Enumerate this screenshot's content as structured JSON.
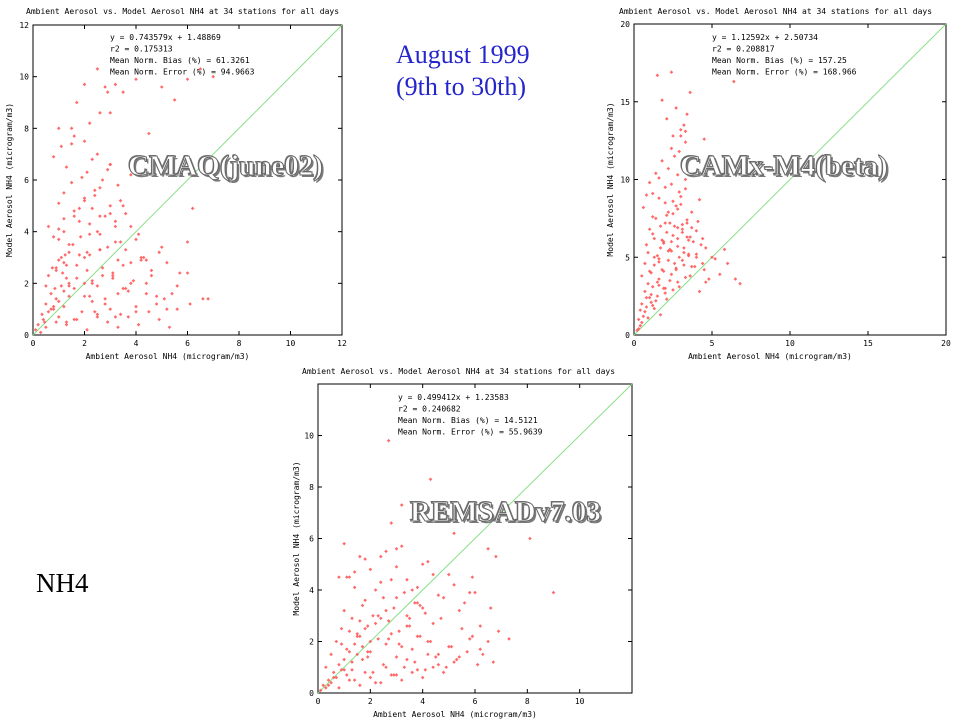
{
  "page": {
    "date_line1": "August 1999",
    "date_line2": "(9th to 30th)",
    "species_label": "NH4"
  },
  "chart_data": [
    {
      "id": "cmaq",
      "type": "scatter",
      "title": "Ambient Aerosol vs. Model Aerosol  NH4 at 34 stations for all days",
      "overlay_label": "CMAQ(june02)",
      "xlabel": "Ambient Aerosol  NH4 (microgram/m3)",
      "ylabel": "Model Aerosol  NH4 (microgram/m3)",
      "xlim": [
        0,
        12
      ],
      "ylim": [
        0,
        12
      ],
      "xticks": [
        0,
        2,
        4,
        6,
        8,
        10,
        12
      ],
      "yticks": [
        0,
        2,
        4,
        6,
        8,
        10,
        12
      ],
      "stats": [
        "y = 0.743579x + 1.48869",
        "r2 = 0.175313",
        "Mean Norm. Bias (%) = 61.3261",
        "Mean Norm. Error (%) = 94.9663"
      ],
      "marker_color": "#ff5a5a",
      "line_color": "#88e088",
      "x": [
        0.1,
        0.2,
        0.3,
        0.35,
        0.45,
        0.5,
        0.6,
        0.7,
        0.8,
        0.9,
        1.0,
        1.1,
        1.2,
        1.3,
        1.4,
        0.5,
        0.6,
        0.75,
        0.85,
        1.0,
        1.15,
        1.25,
        1.4,
        1.55,
        1.7,
        1.85,
        2.0,
        2.1,
        2.3,
        2.5,
        2.7,
        2.9,
        3.1,
        3.3,
        3.5,
        0.8,
        1.0,
        1.2,
        1.4,
        1.6,
        1.8,
        2.0,
        2.2,
        2.4,
        2.6,
        2.8,
        3.0,
        3.2,
        3.4,
        3.6,
        3.8,
        4.0,
        4.3,
        4.6,
        5.0,
        1.0,
        1.2,
        1.5,
        1.8,
        2.1,
        2.4,
        2.7,
        3.0,
        3.3,
        3.6,
        0.8,
        1.1,
        1.3,
        1.6,
        1.9,
        2.2,
        2.5,
        2.8,
        1.5,
        1.7,
        2.0,
        2.3,
        2.6,
        2.9,
        3.2,
        0.9,
        1.2,
        1.4,
        1.7,
        2.0,
        2.3,
        2.6,
        3.1,
        3.5,
        3.9,
        4.4,
        4.9,
        5.4,
        6.0,
        6.6,
        0.4,
        0.7,
        1.0,
        1.3,
        1.6,
        1.9,
        2.2,
        2.5,
        2.8,
        3.1,
        3.4,
        3.7,
        4.0,
        4.4,
        4.8,
        5.2,
        2.0,
        2.3,
        2.6,
        2.9,
        3.2,
        3.5,
        3.8,
        4.1,
        0.6,
        1.0,
        1.4,
        1.8,
        2.2,
        2.6,
        3.0,
        0.9,
        1.1,
        1.3,
        2.1,
        2.3,
        2.5,
        2.7,
        3.0,
        3.3,
        0.8,
        1.2,
        1.6,
        2.0,
        2.4,
        2.8,
        3.2,
        3.6,
        4.0,
        4.4,
        4.8,
        5.2,
        5.6,
        6.0,
        1.0,
        1.5,
        2.0,
        2.5,
        3.0,
        3.5,
        4.0,
        4.5,
        5.0,
        5.5,
        6.0,
        6.5,
        7.0,
        1.2,
        1.6,
        2.2,
        2.6,
        3.2,
        3.8,
        4.2,
        4.6,
        5.1,
        5.6,
        6.1,
        6.8,
        3.0,
        3.4,
        3.8,
        4.2,
        0.5,
        0.9,
        1.3,
        1.7,
        2.1,
        2.5,
        2.9,
        3.3,
        3.7,
        4.1,
        4.5,
        4.9,
        5.3,
        5.7,
        6.2
      ],
      "y": [
        0.2,
        0.4,
        0.1,
        0.8,
        0.5,
        1.2,
        0.9,
        1.6,
        1.0,
        1.4,
        0.7,
        1.9,
        1.1,
        2.2,
        1.5,
        1.9,
        2.3,
        2.6,
        1.8,
        2.9,
        2.4,
        3.1,
        2.0,
        3.5,
        2.7,
        3.8,
        1.5,
        3.2,
        2.1,
        4.0,
        2.6,
        3.4,
        2.2,
        2.9,
        1.8,
        3.8,
        4.1,
        4.5,
        3.5,
        4.8,
        3.1,
        5.2,
        4.3,
        5.6,
        3.9,
        4.6,
        5.0,
        4.2,
        3.6,
        3.3,
        2.8,
        3.7,
        3.0,
        2.5,
        3.4,
        5.1,
        5.5,
        5.9,
        4.9,
        6.3,
        5.4,
        6.0,
        6.6,
        5.8,
        4.7,
        6.9,
        7.3,
        6.5,
        7.7,
        6.1,
        8.2,
        7.0,
        9.6,
        8.0,
        9.0,
        7.5,
        6.8,
        8.6,
        9.4,
        9.7,
        2.5,
        2.8,
        1.9,
        2.2,
        3.0,
        2.0,
        3.3,
        2.4,
        2.7,
        2.1,
        2.9,
        3.2,
        1.6,
        3.6,
        1.4,
        0.6,
        1.0,
        1.3,
        0.5,
        1.8,
        0.9,
        1.5,
        0.7,
        1.2,
        2.3,
        0.8,
        1.7,
        1.1,
        2.0,
        1.5,
        1.0,
        5.3,
        4.9,
        5.7,
        6.4,
        4.4,
        5.0,
        4.2,
        3.9,
        4.2,
        3.7,
        3.2,
        4.4,
        3.9,
        3.3,
        4.7,
        2.6,
        3.0,
        2.7,
        2.5,
        1.3,
        1.9,
        2.3,
        1.0,
        1.6,
        1.1,
        1.7,
        0.6,
        2.0,
        0.9,
        1.4,
        0.7,
        1.8,
        0.9,
        1.6,
        1.2,
        2.8,
        1.0,
        2.4,
        8.0,
        7.4,
        9.7,
        10.3,
        8.6,
        9.4,
        9.9,
        7.8,
        9.6,
        9.1,
        9.9,
        10.3,
        10.0,
        4.0,
        4.6,
        3.1,
        4.6,
        3.6,
        2.0,
        2.9,
        2.3,
        1.4,
        1.9,
        1.2,
        1.4,
        6.6,
        5.2,
        6.2,
        3.0,
        0.3,
        0.5,
        0.4,
        0.6,
        0.2,
        0.8,
        0.5,
        0.3,
        0.7,
        0.4,
        0.9,
        0.6,
        0.3,
        2.4,
        4.9
      ]
    },
    {
      "id": "camx",
      "type": "scatter",
      "title": "Ambient Aerosol vs. Model Aerosol  NH4 at 34 stations for all days",
      "overlay_label": "CAMx-M4(beta)",
      "xlabel": "Ambient Aerosol  NH4 (microgram/m3)",
      "ylabel": "Model Aerosol  NH4 (microgram/m3)",
      "xlim": [
        0,
        20
      ],
      "ylim": [
        0,
        20
      ],
      "xticks": [
        0,
        5,
        10,
        15,
        20
      ],
      "yticks": [
        0,
        5,
        10,
        15,
        20
      ],
      "stats": [
        "y = 1.12592x + 2.50734",
        "r2 = 0.208817",
        "Mean Norm. Bias (%) = 157.25",
        "Mean Norm. Error (%) = 168.966"
      ],
      "marker_color": "#ff5a5a",
      "line_color": "#88e088",
      "x": [
        0.2,
        0.3,
        0.4,
        0.5,
        0.6,
        0.7,
        0.8,
        0.9,
        1.0,
        1.1,
        1.2,
        1.3,
        1.4,
        1.5,
        1.6,
        1.7,
        1.8,
        1.9,
        2.0,
        2.1,
        2.2,
        2.3,
        2.4,
        2.5,
        2.6,
        2.7,
        2.8,
        2.9,
        3.0,
        3.1,
        3.2,
        3.3,
        3.4,
        3.5,
        0.5,
        0.7,
        0.9,
        1.1,
        1.3,
        1.5,
        1.7,
        1.9,
        2.1,
        2.3,
        2.5,
        2.7,
        2.9,
        3.1,
        3.3,
        3.5,
        3.7,
        3.9,
        4.1,
        4.3,
        0.6,
        0.8,
        1.0,
        1.2,
        1.4,
        1.6,
        1.8,
        2.0,
        2.2,
        2.4,
        2.6,
        2.8,
        3.0,
        3.2,
        3.4,
        0.4,
        0.8,
        1.2,
        1.6,
        2.0,
        2.4,
        2.8,
        3.2,
        3.6,
        4.0,
        4.4,
        4.8,
        1.0,
        1.3,
        1.6,
        1.9,
        2.2,
        2.5,
        2.8,
        3.1,
        3.4,
        3.7,
        4.0,
        1.5,
        1.8,
        2.1,
        2.4,
        2.7,
        3.0,
        3.3,
        3.6,
        4.5,
        5.0,
        5.5,
        6.0,
        6.5,
        6.8,
        1.2,
        1.6,
        2.0,
        2.4,
        2.8,
        3.2,
        2.5,
        2.9,
        3.3,
        3.8,
        4.5,
        0.3,
        0.5,
        0.7,
        0.9,
        1.1,
        1.3,
        1.5,
        1.7,
        1.9,
        2.1,
        2.3,
        2.5,
        2.7,
        2.9,
        3.1,
        3.3,
        3.5,
        3.7,
        4.2,
        4.6,
        5.2,
        5.8,
        6.4,
        1.0,
        1.4,
        1.8,
        2.2,
        2.6,
        3.0,
        3.4,
        3.8,
        4.2,
        4.6,
        0.8,
        1.2,
        1.6,
        2.0,
        2.4,
        2.8,
        3.2,
        3.6,
        4.0,
        4.4
      ],
      "y": [
        0.3,
        1.0,
        0.6,
        2.0,
        1.2,
        2.8,
        1.8,
        3.3,
        2.4,
        4.0,
        3.1,
        4.5,
        2.2,
        5.1,
        3.6,
        5.6,
        4.2,
        6.0,
        3.0,
        6.6,
        4.8,
        7.2,
        5.4,
        7.8,
        4.6,
        8.3,
        6.2,
        5.0,
        8.9,
        6.8,
        5.6,
        9.4,
        7.4,
        6.1,
        3.8,
        4.6,
        5.3,
        2.6,
        6.2,
        3.4,
        7.0,
        4.1,
        7.7,
        5.5,
        8.6,
        4.3,
        9.2,
        6.6,
        10.0,
        5.1,
        6.9,
        4.4,
        7.3,
        5.8,
        8.2,
        9.0,
        9.8,
        7.6,
        10.4,
        8.8,
        11.2,
        9.5,
        10.7,
        12.0,
        11.5,
        10.3,
        12.8,
        13.5,
        14.2,
        1.6,
        2.4,
        1.9,
        3.2,
        2.7,
        3.9,
        3.4,
        4.5,
        3.8,
        5.2,
        4.6,
        3.6,
        4.1,
        5.0,
        4.7,
        5.9,
        5.4,
        6.4,
        5.7,
        7.1,
        6.3,
        7.9,
        6.7,
        16.7,
        15.1,
        13.9,
        16.9,
        14.6,
        13.2,
        12.4,
        15.6,
        4.2,
        5.0,
        3.9,
        4.6,
        3.6,
        3.3,
        9.1,
        10.1,
        8.5,
        9.7,
        8.1,
        11.0,
        12.8,
        11.8,
        13.1,
        11.4,
        12.6,
        0.4,
        0.8,
        1.5,
        1.1,
        2.1,
        1.7,
        2.5,
        1.3,
        3.0,
        2.3,
        3.5,
        2.9,
        4.2,
        3.1,
        4.8,
        3.7,
        5.2,
        4.4,
        2.8,
        3.4,
        4.9,
        5.5,
        16.3,
        6.8,
        7.5,
        6.1,
        7.9,
        7.0,
        8.4,
        7.2,
        6.0,
        8.7,
        5.6,
        5.8,
        6.5,
        4.9,
        7.2,
        6.0,
        6.9,
        5.3,
        6.3,
        5.0,
        6.2
      ]
    },
    {
      "id": "remsad",
      "type": "scatter",
      "title": "Ambient Aerosol vs. Model Aerosol  NH4 at 34 stations for all days",
      "overlay_label": "REMSADv7.03",
      "xlabel": "Ambient Aerosol  NH4 (microgram/m3)",
      "ylabel": "Model Aerosol  NH4 (microgram/m3)",
      "xlim": [
        0,
        12
      ],
      "ylim": [
        0,
        12
      ],
      "xticks": [
        0,
        2,
        4,
        6,
        8,
        10
      ],
      "yticks": [
        0,
        2,
        4,
        6,
        8,
        10
      ],
      "stats": [
        "y = 0.499412x + 1.23583",
        "r2 = 0.240682",
        "Mean Norm. Bias (%) = 14.5121",
        "Mean Norm. Error (%) = 55.9639"
      ],
      "marker_color": "#ff5a5a",
      "line_color": "#88e088",
      "x": [
        0.1,
        0.2,
        0.3,
        0.4,
        0.5,
        0.6,
        0.7,
        0.8,
        0.9,
        1.0,
        1.1,
        1.2,
        1.3,
        1.4,
        1.5,
        1.6,
        1.7,
        1.8,
        1.9,
        2.0,
        0.3,
        0.5,
        0.7,
        0.9,
        1.1,
        1.3,
        1.5,
        1.7,
        1.9,
        2.1,
        2.3,
        2.5,
        2.7,
        2.9,
        3.1,
        3.3,
        3.5,
        3.7,
        3.9,
        4.1,
        0.8,
        1.0,
        1.2,
        1.4,
        1.6,
        1.8,
        2.0,
        2.2,
        2.4,
        2.6,
        2.8,
        3.0,
        3.2,
        3.4,
        3.6,
        3.8,
        4.0,
        4.2,
        4.4,
        4.6,
        1.0,
        1.4,
        1.8,
        2.2,
        2.6,
        3.0,
        3.4,
        3.8,
        4.2,
        4.6,
        5.0,
        5.4,
        5.8,
        6.2,
        6.6,
        0.9,
        1.3,
        1.7,
        2.1,
        2.5,
        2.9,
        3.3,
        3.7,
        4.1,
        4.5,
        4.9,
        5.3,
        5.7,
        6.1,
        6.5,
        6.9,
        7.3,
        1.5,
        1.9,
        2.3,
        2.7,
        3.1,
        3.5,
        3.9,
        4.3,
        4.7,
        5.1,
        5.5,
        5.9,
        6.3,
        6.7,
        2.0,
        2.4,
        2.8,
        3.2,
        3.6,
        4.0,
        4.4,
        4.8,
        5.2,
        5.6,
        6.0,
        1.2,
        1.6,
        2.4,
        2.8,
        3.2,
        4.3,
        5.2,
        6.8,
        8.1,
        9.0,
        0.6,
        1.0,
        1.4,
        1.8,
        2.2,
        2.6,
        3.0,
        3.4,
        3.8,
        4.2,
        4.6,
        5.0,
        5.4,
        5.8,
        6.2,
        0.4,
        0.8,
        1.2,
        1.6,
        2.0,
        2.4,
        2.8,
        3.2,
        3.6,
        4.0,
        4.4,
        4.8,
        5.2,
        2.6,
        3.0,
        3.4,
        3.8,
        2.7,
        4.2,
        6.5,
        5.9,
        4.3,
        3.0,
        1.1
      ],
      "y": [
        0.1,
        0.3,
        0.2,
        0.5,
        0.4,
        0.8,
        0.6,
        1.1,
        0.9,
        1.3,
        0.7,
        1.6,
        1.2,
        1.9,
        1.5,
        2.2,
        1.8,
        2.5,
        1.4,
        2.0,
        1.0,
        1.5,
        2.0,
        2.5,
        1.7,
        2.9,
        2.3,
        3.4,
        2.6,
        3.0,
        2.1,
        3.7,
        2.8,
        3.3,
        2.4,
        3.9,
        2.9,
        3.5,
        2.2,
        3.1,
        4.5,
        3.2,
        2.4,
        4.1,
        2.8,
        3.6,
        1.6,
        2.7,
        4.3,
        1.9,
        2.3,
        1.4,
        1.8,
        2.6,
        1.7,
        2.2,
        3.3,
        2.0,
        2.7,
        1.5,
        5.8,
        4.7,
        5.2,
        4.0,
        5.5,
        4.9,
        4.4,
        4.1,
        5.1,
        3.8,
        4.6,
        3.2,
        3.9,
        2.6,
        3.3,
        1.9,
        0.9,
        1.3,
        0.8,
        1.1,
        0.7,
        1.0,
        1.2,
        0.9,
        1.4,
        1.0,
        1.3,
        1.6,
        1.1,
        2.0,
        2.4,
        2.1,
        2.2,
        1.6,
        3.0,
        2.1,
        1.9,
        2.6,
        3.4,
        2.0,
        2.9,
        1.8,
        2.5,
        2.2,
        1.5,
        1.2,
        4.8,
        5.3,
        4.4,
        5.7,
        4.0,
        5.0,
        4.6,
        3.7,
        4.2,
        3.5,
        3.9,
        4.5,
        5.3,
        2.9,
        6.6,
        7.3,
        8.3,
        6.2,
        5.3,
        6.0,
        3.9,
        0.6,
        0.9,
        0.5,
        0.8,
        0.4,
        1.0,
        0.7,
        1.3,
        0.9,
        1.5,
        1.1,
        1.8,
        1.4,
        2.1,
        1.7,
        0.3,
        0.2,
        0.5,
        0.3,
        0.6,
        0.4,
        0.7,
        0.5,
        0.8,
        0.6,
        1.0,
        0.8,
        1.2,
        3.2,
        3.7,
        3.0,
        3.5,
        9.8,
        7.2,
        5.6,
        4.5,
        6.7,
        5.6,
        4.5
      ]
    }
  ]
}
